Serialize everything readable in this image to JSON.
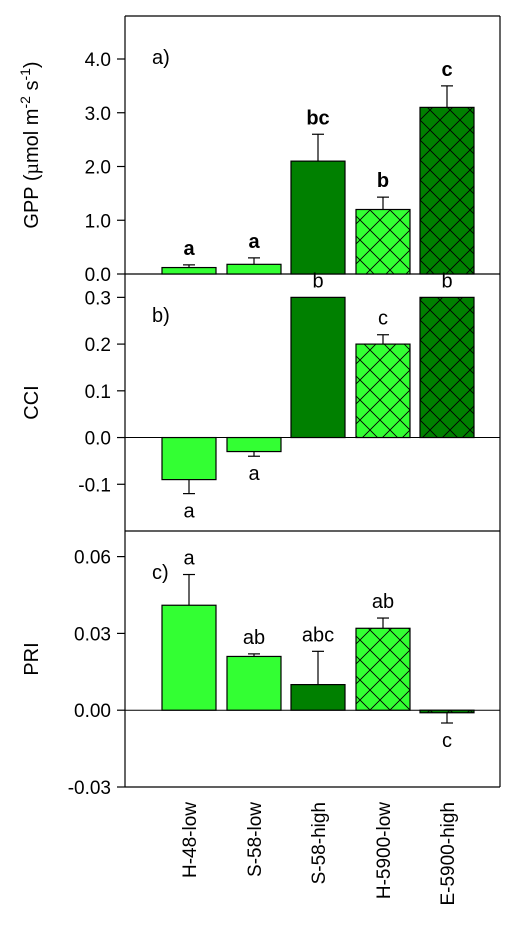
{
  "chart_data": [
    {
      "type": "bar",
      "panel_label": "a)",
      "ylabel": "GPP (µmol m-2 s-1)",
      "ylabel_parts": {
        "prefix": "GPP (",
        "mu": "µ",
        "mid": "mol m",
        "exp1": "-2",
        "gap": " s",
        "exp2": "-1",
        "suffix": ")"
      },
      "ylim": [
        0,
        4.8
      ],
      "yticks": [
        0.0,
        1.0,
        2.0,
        3.0,
        4.0
      ],
      "ytick_labels": [
        "0.0",
        "1.0",
        "2.0",
        "3.0",
        "4.0"
      ],
      "categories": [
        "H-48-low",
        "S-58-low",
        "S-58-high",
        "H-5900-low",
        "E-5900-high"
      ],
      "values": [
        0.12,
        0.18,
        2.1,
        1.2,
        3.1
      ],
      "errors": [
        0.05,
        0.12,
        0.5,
        0.23,
        0.4
      ],
      "letters": [
        "a",
        "a",
        "bc",
        "b",
        "c"
      ],
      "letters_bold": true
    },
    {
      "type": "bar",
      "panel_label": "b)",
      "ylabel": "CCI",
      "ylim": [
        -0.2,
        0.35
      ],
      "yticks": [
        -0.1,
        0.0,
        0.1,
        0.2,
        0.3
      ],
      "ytick_labels": [
        "-0.1",
        "0.0",
        "0.1",
        "0.2",
        "0.3"
      ],
      "categories": [
        "H-48-low",
        "S-58-low",
        "S-58-high",
        "H-5900-low",
        "E-5900-high"
      ],
      "values": [
        -0.09,
        -0.03,
        0.3,
        0.2,
        0.3
      ],
      "errors": [
        0.03,
        0.01,
        0.0,
        0.02,
        0.0
      ],
      "letters": [
        "a",
        "a",
        "b",
        "c",
        "b"
      ],
      "letters_bold": false
    },
    {
      "type": "bar",
      "panel_label": "c)",
      "ylabel": "PRI",
      "ylim": [
        -0.03,
        0.07
      ],
      "yticks": [
        -0.03,
        0.0,
        0.03,
        0.06
      ],
      "ytick_labels": [
        "-0.03",
        "0.00",
        "0.03",
        "0.06"
      ],
      "categories": [
        "H-48-low",
        "S-58-low",
        "S-58-high",
        "H-5900-low",
        "E-5900-high"
      ],
      "values": [
        0.041,
        0.021,
        0.01,
        0.032,
        -0.001
      ],
      "errors": [
        0.012,
        0.001,
        0.013,
        0.004,
        0.004
      ],
      "letters": [
        "a",
        "ab",
        "abc",
        "ab",
        "c"
      ],
      "letters_bold": false
    }
  ],
  "category_labels": [
    "H-48-low",
    "S-58-low",
    "S-58-high",
    "H-5900-low",
    "E-5900-high"
  ],
  "colors": {
    "light_green": "#33ff33",
    "dark_green": "#008000",
    "outline": "#000000"
  },
  "bar_styles": [
    {
      "fill": "light",
      "hatch": false
    },
    {
      "fill": "light",
      "hatch": false
    },
    {
      "fill": "dark",
      "hatch": false
    },
    {
      "fill": "light",
      "hatch": true
    },
    {
      "fill": "dark",
      "hatch": true
    }
  ]
}
